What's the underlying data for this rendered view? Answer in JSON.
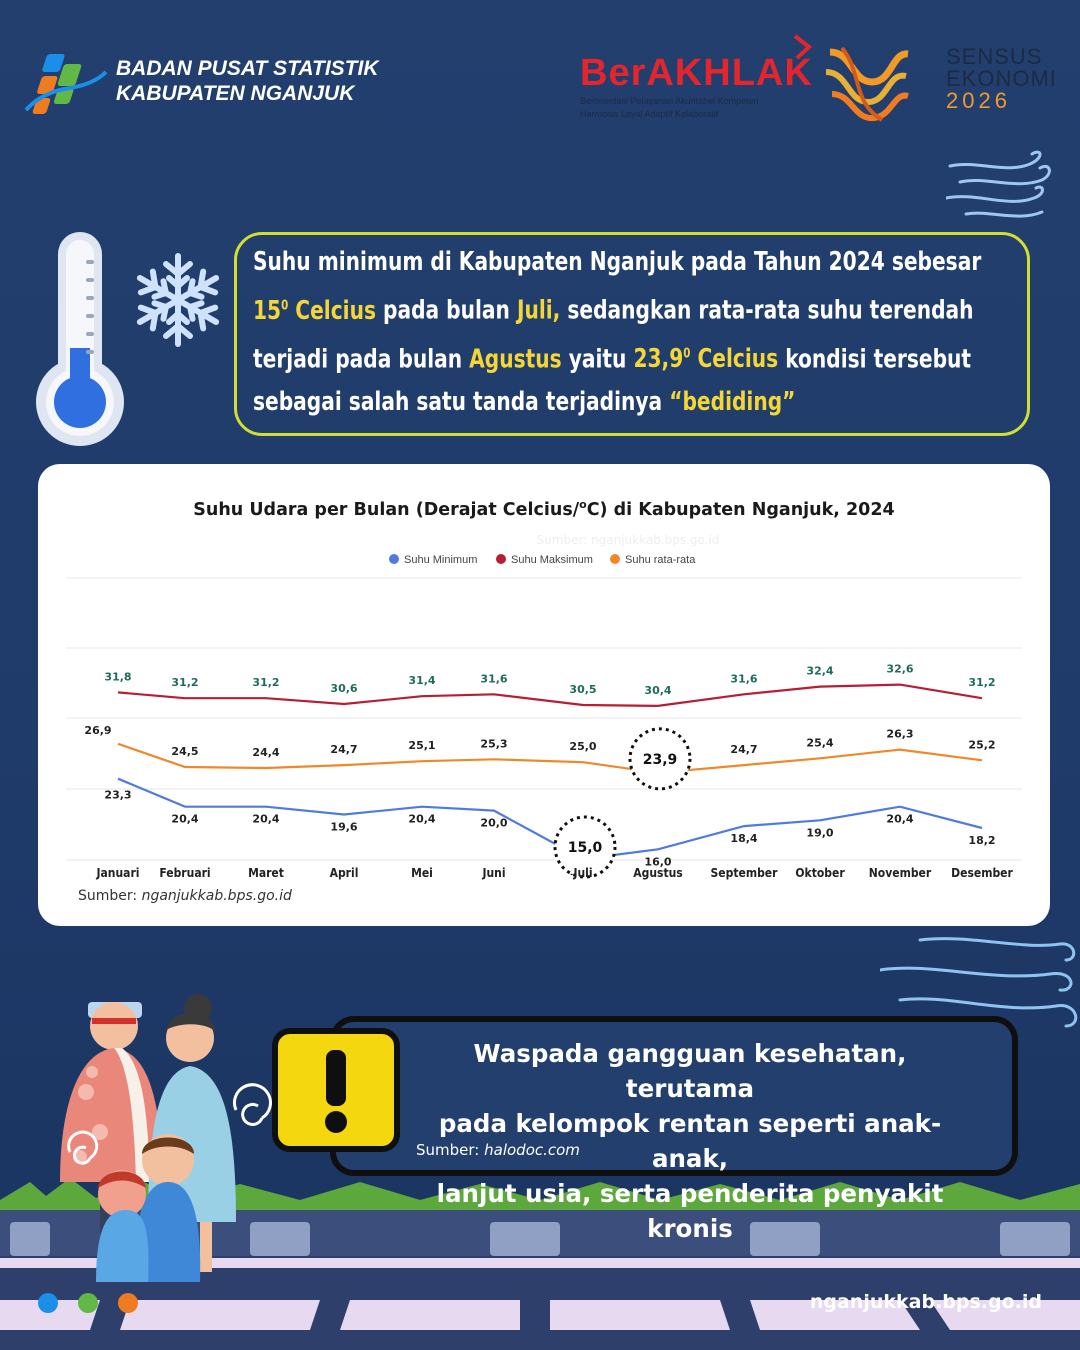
{
  "header": {
    "org_line1": "BADAN PUSAT STATISTIK",
    "org_line2": "KABUPATEN NGANJUK",
    "berakhlak_word": "BerAKHLAK",
    "berakhlak_tag1": "Berorientasi Pelayanan Akuntabel Kompeten",
    "berakhlak_tag2": "Harmonis Loyal Adaptif Kolaboratif",
    "se_line1": "SENSUS",
    "se_line2": "EKONOMI",
    "se_year": "2026"
  },
  "headline": {
    "t1": "Suhu minimum di Kabupaten Nganjuk pada Tahun 2024 sebesar",
    "h1": "15",
    "sup1": "0",
    "h1b": " Celcius",
    "t2": " pada bulan ",
    "h2": "Juli,",
    "t3": " sedangkan rata-rata suhu terendah terjadi pada bulan ",
    "h3": "Agustus",
    "t4": " yaitu ",
    "h4": "23,9",
    "sup2": "0",
    "h4b": " Celcius",
    "t5": " kondisi tersebut sebagai salah satu tanda terjadinya ",
    "h5": "“bediding”"
  },
  "chart_data": {
    "type": "line",
    "title_main": "Suhu Udara per Bulan (Derajat Celcius/",
    "title_sup": "o",
    "title_rest": "C) di Kabupaten Nganjuk, 2024",
    "watermark": "Sumber: nganjukkab.bps.go.id",
    "categories": [
      "Januari",
      "Februari",
      "Maret",
      "April",
      "Mei",
      "Juni",
      "Juli",
      "Agustus",
      "September",
      "Oktober",
      "November",
      "Desember"
    ],
    "series": [
      {
        "name": "Suhu Minimum",
        "color": "#4f7be0",
        "values": [
          23.3,
          20.4,
          20.4,
          19.6,
          20.4,
          20.0,
          15.0,
          16.0,
          18.4,
          19.0,
          20.4,
          18.2
        ],
        "labels": [
          "23,3",
          "20,4",
          "20,4",
          "19,6",
          "20,4",
          "20,0",
          "15,0",
          "16,0",
          "18,4",
          "19,0",
          "20,4",
          "18,2"
        ]
      },
      {
        "name": "Suhu Maksimum",
        "color": "#b81d33",
        "values": [
          31.8,
          31.2,
          31.2,
          30.6,
          31.4,
          31.6,
          30.5,
          30.4,
          31.6,
          32.4,
          32.6,
          31.2
        ],
        "labels": [
          "31,8",
          "31,2",
          "31,2",
          "30,6",
          "31,4",
          "31,6",
          "30,5",
          "30,4",
          "31,6",
          "32,4",
          "32,6",
          "31,2"
        ]
      },
      {
        "name": "Suhu rata-rata",
        "color": "#f0882a",
        "values": [
          26.9,
          24.5,
          24.4,
          24.7,
          25.1,
          25.3,
          25.0,
          23.9,
          24.7,
          25.4,
          26.3,
          25.2
        ],
        "labels": [
          "26,9",
          "24,5",
          "24,4",
          "24,7",
          "25,1",
          "25,3",
          "25,0",
          "23,9",
          "24,7",
          "25,4",
          "26,3",
          "25,2"
        ]
      }
    ],
    "highlights": [
      {
        "series": 0,
        "index": 6
      },
      {
        "series": 2,
        "index": 7
      }
    ],
    "grid": true,
    "legend": "top-center",
    "source_prefix": "Sumber: ",
    "source": "nganjukkab.bps.go.id"
  },
  "warning": {
    "line1": "Waspada gangguan kesehatan, terutama",
    "line2": "pada kelompok rentan seperti anak-anak,",
    "line3": "lanjut usia, serta penderita penyakit kronis",
    "source_prefix": "Sumber: ",
    "source": "halodoc.com",
    "icon": "exclamation-icon"
  },
  "footer": {
    "url": "nganjukkab.bps.go.id",
    "dot_colors": [
      "#1b8fe8",
      "#61b846",
      "#f07c22"
    ]
  },
  "colors": {
    "accent_yellow": "#f5d637",
    "frame_green": "#d2de36",
    "background": "#223f6e"
  }
}
